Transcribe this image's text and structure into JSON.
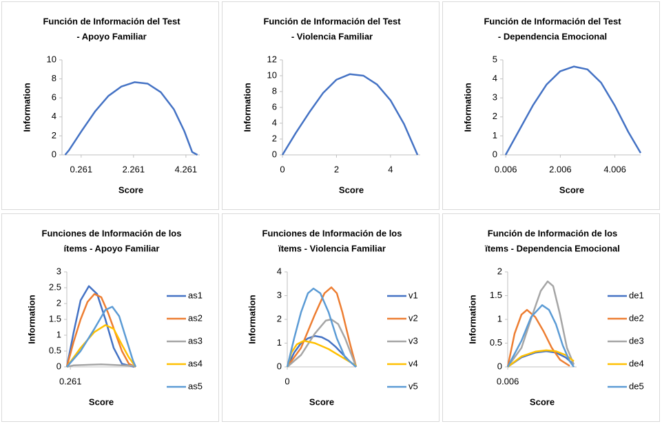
{
  "chart_data": [
    {
      "type": "line",
      "title": [
        "Función de Información del Test",
        "- Apoyo Familiar"
      ],
      "xlabel": "Score",
      "ylabel": "Information",
      "xlim": [
        -0.47,
        4.79
      ],
      "xticks": [
        0.261,
        2.261,
        4.261
      ],
      "ylim": [
        0,
        10
      ],
      "yticks": [
        0,
        2,
        4,
        6,
        8,
        10
      ],
      "color": "#4472c4",
      "x": [
        -0.35,
        -0.2,
        0.3,
        0.8,
        1.3,
        1.8,
        2.3,
        2.8,
        3.3,
        3.8,
        4.2,
        4.5,
        4.7
      ],
      "values": [
        0,
        0.5,
        2.6,
        4.6,
        6.2,
        7.2,
        7.65,
        7.5,
        6.6,
        4.8,
        2.5,
        0.3,
        0
      ]
    },
    {
      "type": "line",
      "title": [
        "Función de Información del Test",
        "- Violencia Familiar"
      ],
      "xlabel": "Score",
      "ylabel": "Information",
      "xlim": [
        0,
        5.1
      ],
      "xticks": [
        0,
        2,
        4
      ],
      "ylim": [
        0,
        12
      ],
      "yticks": [
        0,
        2,
        4,
        6,
        8,
        10,
        12
      ],
      "color": "#4472c4",
      "x": [
        0,
        0.5,
        1,
        1.5,
        2,
        2.5,
        3,
        3.5,
        4,
        4.5,
        5
      ],
      "values": [
        0,
        2.8,
        5.4,
        7.8,
        9.5,
        10.2,
        10.0,
        8.9,
        6.9,
        3.9,
        0
      ]
    },
    {
      "type": "line",
      "title": [
        "Función de Información del Test",
        "- Dependencia Emocional"
      ],
      "xlabel": "Score",
      "ylabel": "Information",
      "xlim": [
        -0.1,
        4.95
      ],
      "xticks": [
        0.006,
        2.006,
        4.006
      ],
      "ylim": [
        0,
        5
      ],
      "yticks": [
        0,
        1,
        2,
        3,
        4,
        5
      ],
      "color": "#4472c4",
      "x": [
        0,
        0.5,
        1,
        1.5,
        2,
        2.5,
        3,
        3.5,
        4,
        4.5,
        4.95
      ],
      "values": [
        0,
        1.3,
        2.6,
        3.7,
        4.4,
        4.65,
        4.5,
        3.8,
        2.6,
        1.2,
        0.1
      ]
    },
    {
      "type": "line",
      "title": [
        "Funciones de Información de los",
        "ítems - Apoyo Familiar"
      ],
      "xlabel": "Score",
      "ylabel": "Information",
      "xlim": [
        0,
        5
      ],
      "xticks": [
        0.261
      ],
      "ylim": [
        0,
        3
      ],
      "yticks": [
        0,
        0.5,
        1,
        1.5,
        2,
        2.5,
        3
      ],
      "series": [
        {
          "name": "as1",
          "color": "#4472c4",
          "x": [
            0,
            0.5,
            1,
            1.6,
            2.2,
            2.8,
            3.4,
            4,
            4.9
          ],
          "values": [
            0,
            1.1,
            2.1,
            2.55,
            2.3,
            1.5,
            0.6,
            0.1,
            0
          ]
        },
        {
          "name": "as2",
          "color": "#ed7d31",
          "x": [
            0,
            0.5,
            1,
            1.5,
            2,
            2.5,
            3,
            3.5,
            4,
            4.5,
            5
          ],
          "values": [
            0,
            0.8,
            1.5,
            2.05,
            2.3,
            2.2,
            1.7,
            1.1,
            0.5,
            0.1,
            0
          ]
        },
        {
          "name": "as3",
          "color": "#a5a5a5",
          "x": [
            0,
            0.5,
            2.5,
            5
          ],
          "values": [
            0,
            0.05,
            0.08,
            0.03
          ]
        },
        {
          "name": "as4",
          "color": "#ffc000",
          "x": [
            0,
            1,
            2,
            2.8,
            3.4,
            4,
            4.5,
            5
          ],
          "values": [
            0,
            0.6,
            1.1,
            1.32,
            1.2,
            0.7,
            0.3,
            0
          ]
        },
        {
          "name": "as5",
          "color": "#5b9bd5",
          "x": [
            0,
            1,
            2,
            2.8,
            3.3,
            3.8,
            4.3,
            4.8,
            5
          ],
          "values": [
            0,
            0.5,
            1.2,
            1.8,
            1.9,
            1.6,
            0.9,
            0.2,
            0
          ]
        }
      ]
    },
    {
      "type": "line",
      "title": [
        "Funciones de Información de los",
        "ïtems - Violencia Familiar"
      ],
      "xlabel": "Score",
      "ylabel": "Information",
      "xlim": [
        0,
        5
      ],
      "xticks": [
        0
      ],
      "ylim": [
        0,
        4
      ],
      "yticks": [
        0,
        1,
        2,
        3,
        4
      ],
      "series": [
        {
          "name": "v1",
          "color": "#4472c4",
          "x": [
            0,
            0.5,
            1,
            1.5,
            2,
            2.5,
            3,
            3.5,
            4,
            4.5,
            5
          ],
          "values": [
            0,
            0.6,
            1.0,
            1.2,
            1.3,
            1.25,
            1.1,
            0.85,
            0.55,
            0.25,
            0
          ]
        },
        {
          "name": "v2",
          "color": "#ed7d31",
          "x": [
            0,
            1,
            2,
            2.7,
            3.2,
            3.6,
            4,
            4.5,
            5
          ],
          "values": [
            0,
            0.8,
            2.2,
            3.1,
            3.35,
            3.1,
            2.3,
            1.1,
            0
          ]
        },
        {
          "name": "v3",
          "color": "#a5a5a5",
          "x": [
            0,
            1,
            2,
            2.8,
            3.2,
            3.7,
            4.2,
            4.6,
            5
          ],
          "values": [
            0,
            0.5,
            1.4,
            1.95,
            2.0,
            1.8,
            1.2,
            0.6,
            0
          ]
        },
        {
          "name": "v4",
          "color": "#ffc000",
          "x": [
            0,
            0.3,
            0.7,
            1.2,
            2,
            3,
            4,
            5
          ],
          "values": [
            0,
            0.6,
            0.95,
            1.1,
            1.0,
            0.75,
            0.4,
            0.05
          ]
        },
        {
          "name": "v5",
          "color": "#5b9bd5",
          "x": [
            0,
            0.5,
            1,
            1.5,
            1.9,
            2.4,
            3,
            3.6,
            4.2,
            5
          ],
          "values": [
            0,
            1.2,
            2.3,
            3.1,
            3.3,
            3.1,
            2.3,
            1.2,
            0.4,
            0
          ]
        }
      ]
    },
    {
      "type": "line",
      "title": [
        "Función de Información de los",
        "ïtems - Dependencia Emocional"
      ],
      "xlabel": "Score",
      "ylabel": "Information",
      "xlim": [
        0,
        5
      ],
      "xticks": [
        0.006
      ],
      "ylim": [
        0,
        2
      ],
      "yticks": [
        0,
        0.5,
        1,
        1.5,
        2
      ],
      "series": [
        {
          "name": "de1",
          "color": "#4472c4",
          "x": [
            0,
            1,
            2,
            2.8,
            3.5,
            4.2,
            4.8
          ],
          "values": [
            0,
            0.2,
            0.3,
            0.33,
            0.3,
            0.2,
            0.05
          ]
        },
        {
          "name": "de2",
          "color": "#ed7d31",
          "x": [
            0,
            0.5,
            1,
            1.4,
            2,
            2.6,
            3.2,
            3.8,
            4.5
          ],
          "values": [
            0,
            0.7,
            1.1,
            1.2,
            1.05,
            0.75,
            0.4,
            0.15,
            0.02
          ]
        },
        {
          "name": "de3",
          "color": "#a5a5a5",
          "x": [
            0,
            1,
            1.8,
            2.4,
            2.9,
            3.3,
            3.8,
            4.3,
            4.8
          ],
          "values": [
            0,
            0.4,
            1.1,
            1.6,
            1.8,
            1.7,
            1.1,
            0.4,
            0.05
          ]
        },
        {
          "name": "de4",
          "color": "#ffc000",
          "x": [
            0,
            1,
            2,
            2.8,
            3.5,
            4.2,
            4.8
          ],
          "values": [
            0,
            0.22,
            0.32,
            0.35,
            0.33,
            0.25,
            0.12
          ]
        },
        {
          "name": "de5",
          "color": "#5b9bd5",
          "x": [
            0,
            1,
            1.7,
            2.5,
            3,
            3.5,
            4,
            4.5,
            4.8
          ],
          "values": [
            0,
            0.55,
            1.05,
            1.3,
            1.2,
            0.9,
            0.45,
            0.12,
            0
          ]
        }
      ]
    }
  ]
}
